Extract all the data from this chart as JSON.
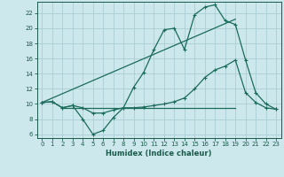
{
  "xlabel": "Humidex (Indice chaleur)",
  "bg_color": "#cde8ec",
  "grid_color": "#aacdd4",
  "line_color": "#1a6b5a",
  "xlim": [
    -0.5,
    23.5
  ],
  "ylim": [
    5.5,
    23.5
  ],
  "yticks": [
    6,
    8,
    10,
    12,
    14,
    16,
    18,
    20,
    22
  ],
  "xticks": [
    0,
    1,
    2,
    3,
    4,
    5,
    6,
    7,
    8,
    9,
    10,
    11,
    12,
    13,
    14,
    15,
    16,
    17,
    18,
    19,
    20,
    21,
    22,
    23
  ],
  "curve1_x": [
    0,
    1,
    2,
    3,
    4,
    5,
    6,
    7,
    8,
    9,
    10,
    11,
    12,
    13,
    14,
    15,
    16,
    17,
    18,
    19,
    20,
    21,
    22,
    23
  ],
  "curve1_y": [
    10.2,
    10.3,
    9.5,
    9.8,
    8.0,
    6.0,
    6.5,
    8.2,
    9.5,
    12.2,
    14.2,
    17.2,
    19.8,
    20.0,
    17.2,
    21.8,
    22.8,
    23.1,
    21.0,
    20.5,
    15.8,
    11.5,
    10.0,
    9.3
  ],
  "curve2_x": [
    0,
    19
  ],
  "curve2_y": [
    10.2,
    21.2
  ],
  "curve3_x": [
    2,
    19
  ],
  "curve3_y": [
    9.5,
    9.5
  ],
  "curve4_x": [
    0,
    1,
    2,
    3,
    4,
    5,
    6,
    7,
    8,
    9,
    10,
    11,
    12,
    13,
    14,
    15,
    16,
    17,
    18,
    19,
    20,
    21,
    22,
    23
  ],
  "curve4_y": [
    10.2,
    10.3,
    9.5,
    9.8,
    9.5,
    8.8,
    8.8,
    9.2,
    9.5,
    9.5,
    9.6,
    9.8,
    10.0,
    10.3,
    10.8,
    12.0,
    13.5,
    14.5,
    15.0,
    15.8,
    11.5,
    10.2,
    9.5,
    9.3
  ],
  "tick_color": "#1a5a4a",
  "label_color": "#1a5a4a"
}
